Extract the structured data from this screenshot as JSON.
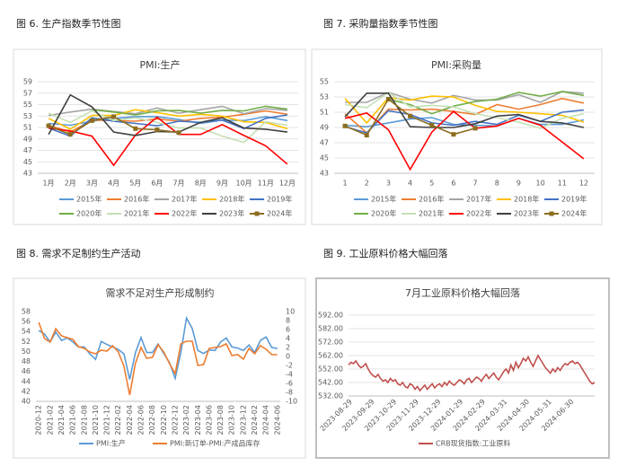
{
  "chart_data": [
    {
      "type": "line",
      "caption": "图 6. 生产指数季节性图",
      "title": "PMI:生产",
      "categories": [
        "1月",
        "2月",
        "3月",
        "4月",
        "5月",
        "6月",
        "7月",
        "8月",
        "9月",
        "10月",
        "11月",
        "12月"
      ],
      "ylim": [
        43,
        59
      ],
      "yticks": [
        43,
        45,
        47,
        49,
        51,
        53,
        55,
        57,
        59
      ],
      "grid": true,
      "legend": "bottom",
      "series": [
        {
          "name": "2015年",
          "color": "#5b9bd5",
          "values": [
            51.7,
            51.4,
            52.1,
            52.6,
            52.9,
            52.9,
            52.4,
            51.7,
            52.3,
            52.2,
            52.9,
            52.2
          ]
        },
        {
          "name": "2016年",
          "color": "#ed7d31",
          "values": [
            51.4,
            50.2,
            52.3,
            52.2,
            52.1,
            52.5,
            52.1,
            52.6,
            52.8,
            53.3,
            53.9,
            53.3
          ]
        },
        {
          "name": "2017年",
          "color": "#a5a5a5",
          "values": [
            53.1,
            53.7,
            54.2,
            53.8,
            53.4,
            54.4,
            53.5,
            54.1,
            54.7,
            53.4,
            54.3,
            54.0
          ]
        },
        {
          "name": "2018年",
          "color": "#ffc000",
          "values": [
            52.6,
            50.7,
            53.1,
            53.1,
            54.1,
            53.6,
            53.0,
            53.3,
            53.0,
            52.0,
            51.9,
            50.8
          ]
        },
        {
          "name": "2019年",
          "color": "#4472c4",
          "values": [
            50.9,
            49.5,
            52.7,
            52.1,
            51.7,
            51.3,
            52.1,
            51.9,
            52.3,
            50.8,
            52.6,
            53.2
          ]
        },
        {
          "name": "2020年",
          "color": "#70ad47",
          "values": [
            51.3,
            null,
            54.1,
            53.7,
            53.2,
            53.9,
            54.0,
            53.5,
            54.0,
            53.9,
            54.7,
            54.2
          ]
        },
        {
          "name": "2021年",
          "color": "#c5e0b4",
          "values": [
            53.5,
            51.9,
            53.9,
            52.2,
            52.7,
            51.9,
            50.9,
            50.9,
            49.5,
            48.4,
            52.0,
            51.4
          ]
        },
        {
          "name": "2022年",
          "color": "#ff0000",
          "values": [
            50.9,
            50.4,
            49.5,
            44.4,
            49.7,
            52.8,
            49.8,
            49.8,
            51.5,
            49.6,
            47.8,
            44.6
          ]
        },
        {
          "name": "2023年",
          "color": "#404040",
          "values": [
            49.8,
            56.7,
            54.6,
            50.2,
            49.6,
            50.3,
            50.2,
            51.9,
            52.7,
            50.9,
            50.7,
            50.2
          ]
        },
        {
          "name": "2024年",
          "color": "#8c6d1f",
          "marker": "square",
          "values": [
            51.3,
            49.8,
            52.2,
            52.9,
            50.8,
            50.6,
            50.1,
            null,
            null,
            null,
            null,
            null
          ]
        }
      ]
    },
    {
      "type": "line",
      "caption": "图 7. 采购量指数季节性图",
      "title": "PMI:采购量",
      "categories": [
        "1",
        "2",
        "3",
        "4",
        "5",
        "6",
        "7",
        "8",
        "9",
        "10",
        "11",
        "12"
      ],
      "ylim": [
        43,
        55
      ],
      "yticks": [
        43,
        45,
        47,
        49,
        51,
        53,
        55
      ],
      "grid": true,
      "legend": "bottom",
      "series": [
        {
          "name": "2015年",
          "color": "#5b9bd5",
          "values": [
            49.3,
            49.1,
            49.6,
            50.1,
            50.3,
            49.4,
            49.3,
            49.2,
            50.2,
            49.4,
            49.4,
            50.0
          ]
        },
        {
          "name": "2016年",
          "color": "#ed7d31",
          "values": [
            50.8,
            48.3,
            51.4,
            51.3,
            51.4,
            51.1,
            50.7,
            52.0,
            51.4,
            52.0,
            52.8,
            52.2
          ]
        },
        {
          "name": "2017年",
          "color": "#a5a5a5",
          "values": [
            52.3,
            52.3,
            53.6,
            52.7,
            52.2,
            53.2,
            52.6,
            52.6,
            53.3,
            52.3,
            53.7,
            53.5
          ]
        },
        {
          "name": "2018年",
          "color": "#ffc000",
          "values": [
            52.8,
            49.6,
            52.9,
            52.6,
            53.1,
            53.0,
            51.9,
            51.1,
            51.0,
            50.8,
            50.6,
            49.7
          ]
        },
        {
          "name": "2019年",
          "color": "#4472c4",
          "values": [
            49.1,
            48.3,
            51.2,
            50.7,
            49.6,
            49.3,
            49.8,
            49.4,
            50.6,
            49.8,
            51.0,
            51.3
          ]
        },
        {
          "name": "2020年",
          "color": "#70ad47",
          "values": [
            51.6,
            null,
            52.7,
            52.0,
            50.8,
            51.8,
            52.4,
            52.7,
            53.6,
            53.1,
            53.7,
            53.2
          ]
        },
        {
          "name": "2021年",
          "color": "#c5e0b4",
          "values": [
            52.0,
            51.6,
            53.6,
            51.7,
            51.9,
            51.7,
            50.8,
            50.3,
            49.7,
            48.9,
            50.2,
            50.8
          ]
        },
        {
          "name": "2022年",
          "color": "#ff0000",
          "values": [
            50.2,
            50.9,
            48.7,
            43.5,
            48.4,
            51.1,
            48.9,
            49.2,
            50.2,
            49.3,
            47.1,
            44.9
          ]
        },
        {
          "name": "2023年",
          "color": "#404040",
          "values": [
            50.4,
            53.5,
            53.5,
            49.1,
            49.0,
            49.0,
            49.5,
            50.5,
            50.7,
            49.8,
            49.6,
            49.0
          ]
        },
        {
          "name": "2024年",
          "color": "#8c6d1f",
          "marker": "square",
          "values": [
            49.2,
            48.0,
            52.7,
            50.5,
            49.3,
            48.1,
            48.9,
            null,
            null,
            null,
            null,
            null
          ]
        }
      ]
    },
    {
      "type": "line",
      "caption": "图 8. 需求不足制约生产活动",
      "title": "需求不足对生产形成制约",
      "categories": [
        "2020-12",
        null,
        "2021-02",
        null,
        "2021-04",
        null,
        "2021-06",
        null,
        "2021-08",
        null,
        "2021-10",
        null,
        "2021-12",
        null,
        "2022-02",
        null,
        "2022-04",
        null,
        "2022-06",
        null,
        "2022-08",
        null,
        "2022-10",
        null,
        "2022-12",
        null,
        "2023-02",
        null,
        "2023-04",
        null,
        "2023-06",
        null,
        "2023-08",
        null,
        "2023-10",
        null,
        "2023-12",
        null,
        "2024-02",
        null,
        "2024-04",
        null,
        "2024-06"
      ],
      "ylim": [
        40,
        58
      ],
      "yticks": [
        40,
        42,
        44,
        46,
        48,
        50,
        52,
        54,
        56,
        58
      ],
      "y2lim": [
        -10,
        10
      ],
      "y2ticks": [
        -10,
        -8,
        -6,
        -4,
        -2,
        0,
        2,
        4,
        6,
        8,
        10
      ],
      "grid": false,
      "legend": "bottom",
      "series": [
        {
          "name": "PMI:生产",
          "color": "#5b9bd5",
          "values": [
            54.2,
            53.5,
            51.9,
            53.9,
            52.2,
            52.7,
            51.9,
            50.9,
            50.9,
            49.5,
            48.4,
            52.0,
            51.4,
            50.9,
            50.4,
            49.5,
            44.4,
            49.7,
            52.8,
            49.8,
            49.8,
            51.5,
            49.6,
            47.8,
            44.6,
            49.8,
            56.7,
            54.6,
            50.2,
            49.6,
            50.3,
            50.2,
            51.9,
            52.7,
            50.9,
            50.7,
            50.2,
            51.3,
            49.8,
            52.2,
            52.9,
            50.8,
            50.6
          ]
        },
        {
          "name": "PMI:新订单-PMI:产成品库存",
          "color": "#ed7d31",
          "axis": "y2",
          "values": [
            7.6,
            4.0,
            3.2,
            6.2,
            4.6,
            4.2,
            3.8,
            2.2,
            1.8,
            1.0,
            0.6,
            1.4,
            1.2,
            2.4,
            1.0,
            -2.2,
            -8.6,
            -1.6,
            2.0,
            -0.4,
            -0.2,
            2.6,
            1.0,
            -1.6,
            -3.8,
            2.8,
            3.4,
            3.4,
            -2.0,
            -1.8,
            1.8,
            2.0,
            2.2,
            2.8,
            0.2,
            0.4,
            -0.6,
            1.8,
            0.6,
            2.4,
            1.6,
            0.4,
            0.4
          ]
        }
      ]
    },
    {
      "type": "line",
      "caption": "图 9. 工业原料价格大幅回落",
      "title": "7月工业原料价格大幅回落",
      "categories": [
        null,
        "2023-08-29",
        null,
        null,
        null,
        null,
        null,
        null,
        null,
        null,
        "2023-09-29",
        null,
        null,
        null,
        null,
        null,
        null,
        null,
        null,
        "2023-10-29",
        null,
        null,
        null,
        null,
        null,
        null,
        null,
        null,
        "2023-11-29",
        null,
        null,
        null,
        null,
        null,
        null,
        null,
        null,
        "2023-12-29",
        null,
        null,
        null,
        null,
        null,
        null,
        null,
        null,
        "2024-01-29",
        null,
        null,
        null,
        null,
        null,
        null,
        null,
        null,
        "2024-02-29",
        null,
        null,
        null,
        null,
        null,
        null,
        null,
        null,
        "2024-03-31",
        null,
        null,
        null,
        null,
        null,
        null,
        null,
        null,
        "2024-04-30",
        null,
        null,
        null,
        null,
        null,
        null,
        null,
        null,
        "2024-05-31",
        null,
        null,
        null,
        null,
        null,
        null,
        null,
        null,
        "2024-06-30",
        null,
        null,
        null,
        null,
        null,
        null,
        null,
        null,
        null
      ],
      "ylim": [
        532,
        592
      ],
      "yticks": [
        {
          "value": 532,
          "label": "532.00"
        },
        {
          "value": 542,
          "label": "542.00"
        },
        {
          "value": 552,
          "label": "552.00"
        },
        {
          "value": 562,
          "label": "562.00"
        },
        {
          "value": 572,
          "label": "572.00"
        },
        {
          "value": 582,
          "label": "582.00"
        },
        {
          "value": 592,
          "label": "592.00"
        }
      ],
      "grid": true,
      "legend": "bottom",
      "series": [
        {
          "name": "CRB现货指数:工业原料",
          "color": "#c0504d",
          "values": [
            555,
            557,
            556,
            558,
            555,
            553,
            554,
            556,
            552,
            549,
            547,
            546,
            548,
            545,
            543,
            544,
            542,
            545,
            543,
            544,
            541,
            540,
            542,
            539,
            538,
            541,
            540,
            537,
            539,
            536,
            538,
            540,
            537,
            539,
            541,
            538,
            540,
            541,
            539,
            542,
            540,
            543,
            541,
            540,
            542,
            544,
            543,
            541,
            544,
            545,
            542,
            544,
            546,
            545,
            543,
            546,
            548,
            545,
            547,
            549,
            546,
            544,
            547,
            550,
            552,
            549,
            555,
            551,
            557,
            553,
            556,
            560,
            558,
            561,
            557,
            554,
            558,
            562,
            559,
            556,
            553,
            551,
            549,
            552,
            550,
            553,
            551,
            554,
            556,
            555,
            557,
            558,
            556,
            557,
            555,
            552,
            549,
            546,
            543,
            541,
            542
          ]
        }
      ]
    }
  ]
}
